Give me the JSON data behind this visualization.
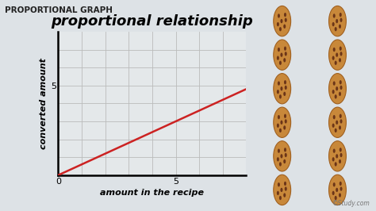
{
  "title": "proportional relationship",
  "header": "PROPORTIONAL GRAPH",
  "xlabel": "amount in the recipe",
  "ylabel": "converted amount",
  "xlim": [
    0,
    8
  ],
  "ylim": [
    0,
    8
  ],
  "xtick_val": 5,
  "ytick_val": 5,
  "line_x_start": 0,
  "line_x_end": 8,
  "line_y_start": 0,
  "line_y_end": 4.8,
  "line_color": "#cc2222",
  "line_width": 1.8,
  "grid_color": "#bbbbbb",
  "grid_values": [
    1,
    2,
    3,
    4,
    5,
    6,
    7
  ],
  "plot_bg": "#e4e8ea",
  "outer_bg": "#dde2e6",
  "header_bg": "#b8cdd6",
  "header_color": "#222222",
  "axis_label_fontsize": 8,
  "title_fontsize": 13,
  "header_fontsize": 7.5,
  "num_cookies_cols": 2,
  "num_cookies_rows": 6,
  "cookie_color": "#c8883a",
  "cookie_edge_color": "#a06020",
  "chip_color": "#6b3518",
  "zero_label": "0"
}
